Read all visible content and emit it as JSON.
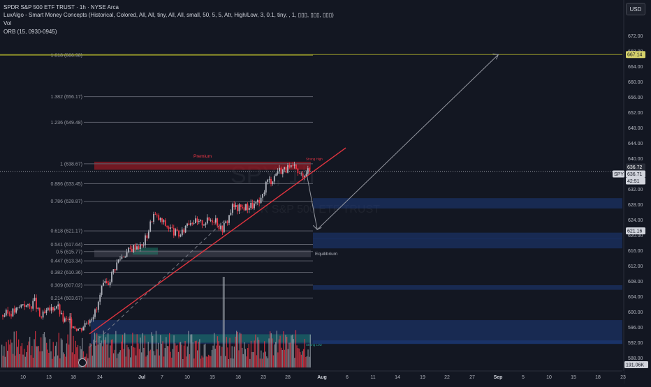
{
  "header": {
    "symbol_line": "SPDR S&P 500 ETF TRUST · 1h · NYSE Arca",
    "indicator1": "LuxAlgo - Smart Money Concepts (Historical, Colored, All, All, tiny, All, All, small, 50, 5, 5, Atr, High/Low, 3, 0.1, tiny, , 1, ▯▯▯, ▯▯▯, ▯▯▯)",
    "indicator2": "Vol",
    "indicator3": "ORB (15, 0930-0945)"
  },
  "currency": "USD",
  "watermark": {
    "line1": "SPY, 1h",
    "line2": "SPDR S&P 500 ETF TRUST"
  },
  "labels": {
    "premium": "Premium",
    "equilibrium": "Equilibrium",
    "strong_high": "Strong High",
    "strong_low": "Strong Low"
  },
  "price_tags": {
    "target": "667.14",
    "last": "636.72",
    "spy_label": "SPY",
    "spy_value": "636.71",
    "countdown": "42:51",
    "level": "621.16",
    "volume": "191.06K"
  },
  "fib_levels": [
    {
      "label": "1.618 (666.98)",
      "price": 666.98
    },
    {
      "label": "1.382 (656.17)",
      "price": 656.17
    },
    {
      "label": "1.236 (649.48)",
      "price": 649.48
    },
    {
      "label": "1 (638.67)",
      "price": 638.67
    },
    {
      "label": "0.886 (633.45)",
      "price": 633.45
    },
    {
      "label": "0.786 (628.87)",
      "price": 628.87
    },
    {
      "label": "0.618 (621.17)",
      "price": 621.17
    },
    {
      "label": "0.541 (617.64)",
      "price": 617.64
    },
    {
      "label": "0.5 (615.77)",
      "price": 615.77
    },
    {
      "label": "0.447 (613.34)",
      "price": 613.34
    },
    {
      "label": "0.382 (610.36)",
      "price": 610.36
    },
    {
      "label": "0.309 (607.02)",
      "price": 607.02
    },
    {
      "label": "0.214 (603.67)",
      "price": 603.67
    }
  ],
  "colors": {
    "background": "#131722",
    "bull": "#b2b5be",
    "bear": "#f23645",
    "zone": "#1e3a7a",
    "premium_zone": "#8b1a24",
    "trendline": "#e0343f"
  },
  "chart_data": {
    "type": "candlestick",
    "title": "SPDR S&P 500 ETF TRUST · 1h · NYSE Arca",
    "y_axis": {
      "ylim": [
        586,
        674
      ],
      "ticks": [
        672,
        668,
        664,
        660,
        656,
        652,
        648,
        644,
        640,
        636,
        632,
        628,
        624,
        620,
        616,
        612,
        608,
        604,
        600,
        596,
        592,
        588
      ]
    },
    "x_axis": {
      "ticks": [
        "10",
        "13",
        "18",
        "24",
        "Jul",
        "7",
        "10",
        "15",
        "18",
        "23",
        "28",
        "Aug",
        "6",
        "11",
        "14",
        "19",
        "22",
        "27",
        "Sep",
        "5",
        "10",
        "15",
        "18",
        "23",
        "2"
      ]
    },
    "close_path": [
      {
        "d": "Jun 06",
        "v": 599.0
      },
      {
        "d": "Jun 09",
        "v": 600.5
      },
      {
        "d": "Jun 10",
        "v": 602.5
      },
      {
        "d": "Jun 11",
        "v": 601.0
      },
      {
        "d": "Jun 12",
        "v": 603.0
      },
      {
        "d": "Jun 13",
        "v": 598.5
      },
      {
        "d": "Jun 16",
        "v": 602.0
      },
      {
        "d": "Jun 17",
        "v": 598.0
      },
      {
        "d": "Jun 18",
        "v": 597.5
      },
      {
        "d": "Jun 20",
        "v": 595.5
      },
      {
        "d": "Jun 23",
        "v": 600.5
      },
      {
        "d": "Jun 24",
        "v": 606.5
      },
      {
        "d": "Jun 25",
        "v": 607.5
      },
      {
        "d": "Jun 26",
        "v": 611.0
      },
      {
        "d": "Jun 27",
        "v": 614.0
      },
      {
        "d": "Jun 30",
        "v": 617.5
      },
      {
        "d": "Jul 01",
        "v": 617.0
      },
      {
        "d": "Jul 02",
        "v": 620.5
      },
      {
        "d": "Jul 03",
        "v": 625.5
      },
      {
        "d": "Jul 07",
        "v": 620.5
      },
      {
        "d": "Jul 08",
        "v": 620.0
      },
      {
        "d": "Jul 09",
        "v": 623.5
      },
      {
        "d": "Jul 10",
        "v": 624.0
      },
      {
        "d": "Jul 11",
        "v": 623.0
      },
      {
        "d": "Jul 14",
        "v": 624.5
      },
      {
        "d": "Jul 15",
        "v": 621.5
      },
      {
        "d": "Jul 16",
        "v": 623.5
      },
      {
        "d": "Jul 17",
        "v": 627.5
      },
      {
        "d": "Jul 18",
        "v": 627.0
      },
      {
        "d": "Jul 21",
        "v": 628.0
      },
      {
        "d": "Jul 22",
        "v": 628.5
      },
      {
        "d": "Jul 23",
        "v": 634.0
      },
      {
        "d": "Jul 24",
        "v": 634.5
      },
      {
        "d": "Jul 25",
        "v": 637.0
      },
      {
        "d": "Jul 28",
        "v": 637.5
      },
      {
        "d": "Jul 29",
        "v": 635.5
      },
      {
        "d": "Jul 30",
        "v": 636.7
      }
    ],
    "annotations": {
      "projection": [
        {
          "d": "Jul 30",
          "v": 637
        },
        {
          "d": "Aug 01",
          "v": 621.5
        },
        {
          "d": "Sep 02",
          "v": 667.14
        }
      ]
    }
  }
}
